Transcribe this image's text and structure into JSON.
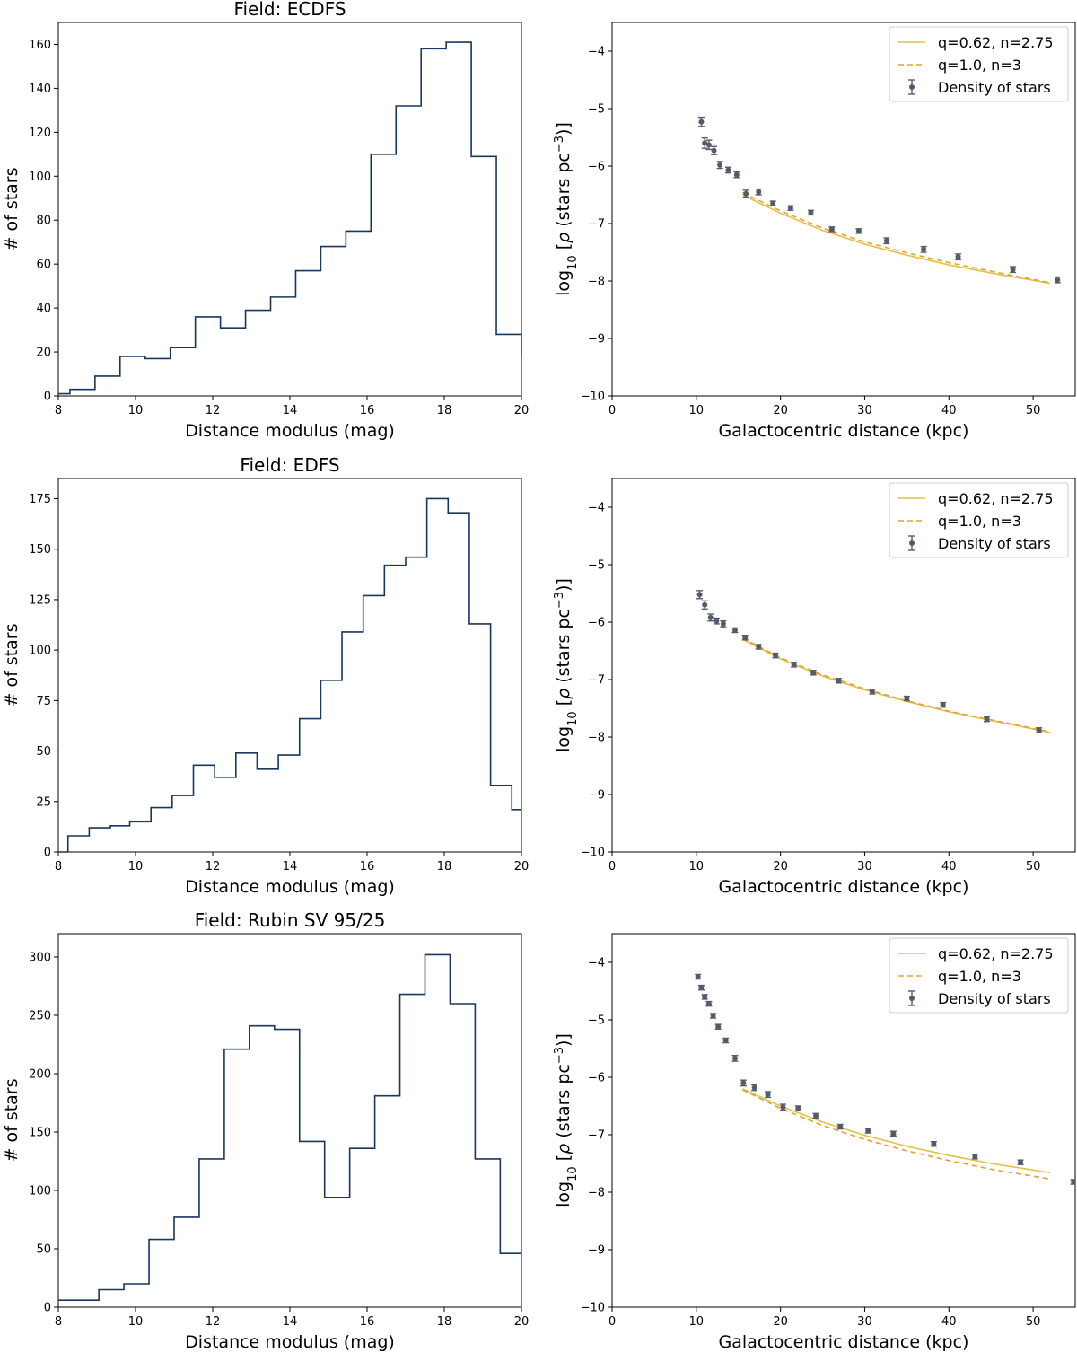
{
  "figure": {
    "legend": {
      "solid_label": "q=0.62, n=2.75",
      "dashed_label": "q=1.0, n=3",
      "points_label": "Density of stars"
    },
    "colors": {
      "histogram": "#17375e",
      "model_solid": "#e6c040",
      "model_dashed": "#e0a23a",
      "points": "#555a6b"
    }
  },
  "chart_data": [
    {
      "type": "bar",
      "style": "step-histogram",
      "title": "Field: ECDFS",
      "xlabel": "Distance modulus (mag)",
      "ylabel": "# of stars",
      "xlim": [
        8,
        20
      ],
      "ylim": [
        0,
        170
      ],
      "xticks": [
        8,
        10,
        12,
        14,
        16,
        18,
        20
      ],
      "yticks": [
        0,
        20,
        40,
        60,
        80,
        100,
        120,
        140,
        160
      ],
      "bin_edges": [
        8,
        8.3,
        8.95,
        9.6,
        10.25,
        10.9,
        11.55,
        12.2,
        12.85,
        13.5,
        14.15,
        14.8,
        15.45,
        16.1,
        16.75,
        17.4,
        18.05,
        18.7,
        19.35,
        20
      ],
      "values": [
        1,
        3,
        9,
        18,
        17,
        22,
        36,
        31,
        39,
        45,
        57,
        68,
        75,
        110,
        132,
        158,
        161,
        109,
        28,
        19
      ]
    },
    {
      "type": "scatter",
      "style": "errorbar-with-models",
      "xlabel": "Galactocentric distance (kpc)",
      "ylabel": "log10[ρ (stars pc^-3)]",
      "xlim": [
        0,
        55
      ],
      "ylim": [
        -10,
        -3.5
      ],
      "xticks": [
        0,
        10,
        20,
        30,
        40,
        50
      ],
      "yticks": [
        -10,
        -9,
        -8,
        -7,
        -6,
        -5,
        -4
      ],
      "points": {
        "x": [
          10.6,
          11.0,
          11.5,
          12.1,
          12.8,
          13.8,
          14.8,
          15.9,
          17.4,
          19.1,
          21.2,
          23.6,
          26.1,
          29.3,
          32.6,
          37.0,
          41.1,
          47.6,
          52.9
        ],
        "y": [
          -5.23,
          -5.6,
          -5.63,
          -5.73,
          -5.98,
          -6.07,
          -6.15,
          -6.48,
          -6.45,
          -6.65,
          -6.73,
          -6.81,
          -7.1,
          -7.13,
          -7.3,
          -7.45,
          -7.58,
          -7.8,
          -7.98
        ],
        "err": [
          0.08,
          0.09,
          0.08,
          0.07,
          0.06,
          0.05,
          0.05,
          0.06,
          0.05,
          0.04,
          0.04,
          0.04,
          0.04,
          0.04,
          0.05,
          0.05,
          0.05,
          0.05,
          0.05
        ]
      },
      "series": [
        {
          "name": "q=0.62, n=2.75",
          "style": "solid",
          "x": [
            15.5,
            20,
            25,
            30,
            35,
            40,
            45,
            52
          ],
          "values": [
            -6.5,
            -6.82,
            -7.12,
            -7.36,
            -7.55,
            -7.72,
            -7.86,
            -8.04
          ]
        },
        {
          "name": "q=1.0, n=3",
          "style": "dashed",
          "x": [
            15.5,
            20,
            25,
            30,
            35,
            40,
            45,
            52
          ],
          "values": [
            -6.46,
            -6.78,
            -7.08,
            -7.32,
            -7.51,
            -7.68,
            -7.83,
            -8.03
          ]
        }
      ]
    },
    {
      "type": "bar",
      "style": "step-histogram",
      "title": "Field: EDFS",
      "xlabel": "Distance modulus (mag)",
      "ylabel": "# of stars",
      "xlim": [
        8,
        20
      ],
      "ylim": [
        0,
        185
      ],
      "xticks": [
        8,
        10,
        12,
        14,
        16,
        18,
        20
      ],
      "yticks": [
        0,
        25,
        50,
        75,
        100,
        125,
        150,
        175
      ],
      "bin_edges": [
        8,
        8.25,
        8.8,
        9.35,
        9.85,
        10.4,
        10.95,
        11.5,
        12.05,
        12.6,
        13.15,
        13.7,
        14.25,
        14.8,
        15.35,
        15.9,
        16.45,
        17.0,
        17.55,
        18.1,
        18.65,
        19.2,
        19.75,
        20
      ],
      "values": [
        0,
        8,
        12,
        13,
        15,
        22,
        28,
        43,
        37,
        49,
        41,
        48,
        66,
        85,
        109,
        127,
        142,
        146,
        175,
        168,
        113,
        33,
        21
      ]
    },
    {
      "type": "scatter",
      "style": "errorbar-with-models",
      "xlabel": "Galactocentric distance (kpc)",
      "ylabel": "log10[ρ (stars pc^-3)]",
      "xlim": [
        0,
        55
      ],
      "ylim": [
        -10,
        -3.5
      ],
      "xticks": [
        0,
        10,
        20,
        30,
        40,
        50
      ],
      "yticks": [
        -10,
        -9,
        -8,
        -7,
        -6,
        -5,
        -4
      ],
      "points": {
        "x": [
          10.4,
          11.0,
          11.7,
          12.4,
          13.2,
          14.6,
          15.8,
          17.4,
          19.4,
          21.6,
          23.9,
          26.9,
          30.9,
          35.0,
          39.3,
          44.5,
          50.7
        ],
        "y": [
          -5.52,
          -5.7,
          -5.92,
          -5.98,
          -6.03,
          -6.14,
          -6.27,
          -6.43,
          -6.58,
          -6.74,
          -6.88,
          -7.02,
          -7.21,
          -7.33,
          -7.44,
          -7.69,
          -7.88
        ],
        "err": [
          0.07,
          0.07,
          0.06,
          0.05,
          0.05,
          0.04,
          0.04,
          0.04,
          0.04,
          0.04,
          0.04,
          0.04,
          0.04,
          0.04,
          0.04,
          0.04,
          0.04
        ]
      },
      "series": [
        {
          "name": "q=0.62, n=2.75",
          "style": "solid",
          "x": [
            15.5,
            20,
            25,
            30,
            35,
            40,
            45,
            52
          ],
          "values": [
            -6.3,
            -6.64,
            -6.94,
            -7.18,
            -7.38,
            -7.56,
            -7.71,
            -7.92
          ]
        },
        {
          "name": "q=1.0, n=3",
          "style": "dashed",
          "x": [
            15.5,
            20,
            25,
            30,
            35,
            40,
            45,
            52
          ],
          "values": [
            -6.28,
            -6.62,
            -6.92,
            -7.16,
            -7.37,
            -7.55,
            -7.7,
            -7.91
          ]
        }
      ]
    },
    {
      "type": "bar",
      "style": "step-histogram",
      "title": "Field: Rubin SV 95/25",
      "xlabel": "Distance modulus (mag)",
      "ylabel": "# of stars",
      "xlim": [
        8,
        20
      ],
      "ylim": [
        0,
        320
      ],
      "xticks": [
        8,
        10,
        12,
        14,
        16,
        18,
        20
      ],
      "yticks": [
        0,
        50,
        100,
        150,
        200,
        250,
        300
      ],
      "bin_edges": [
        8,
        9.05,
        9.7,
        10.35,
        11.0,
        11.65,
        12.3,
        12.95,
        13.6,
        14.25,
        14.9,
        15.55,
        16.2,
        16.85,
        17.5,
        18.15,
        18.8,
        19.45,
        20
      ],
      "values": [
        6,
        15,
        20,
        58,
        77,
        127,
        221,
        241,
        238,
        142,
        94,
        136,
        181,
        268,
        302,
        260,
        127,
        46
      ]
    },
    {
      "type": "scatter",
      "style": "errorbar-with-models",
      "xlabel": "Galactocentric distance (kpc)",
      "ylabel": "log10[ρ (stars pc^-3)]",
      "xlim": [
        0,
        55
      ],
      "ylim": [
        -10,
        -3.5
      ],
      "xticks": [
        0,
        10,
        20,
        30,
        40,
        50
      ],
      "yticks": [
        -10,
        -9,
        -8,
        -7,
        -6,
        -5,
        -4
      ],
      "points": {
        "x": [
          10.2,
          10.6,
          11.0,
          11.5,
          12.0,
          12.6,
          13.5,
          14.6,
          15.6,
          16.9,
          18.5,
          20.3,
          22.1,
          24.2,
          27.1,
          30.4,
          33.4,
          38.2,
          43.1,
          48.5,
          54.8
        ],
        "y": [
          -4.25,
          -4.44,
          -4.6,
          -4.72,
          -4.93,
          -5.12,
          -5.36,
          -5.67,
          -6.1,
          -6.18,
          -6.3,
          -6.52,
          -6.54,
          -6.67,
          -6.86,
          -6.93,
          -6.98,
          -7.16,
          -7.38,
          -7.48,
          -7.82
        ],
        "err": [
          0.04,
          0.04,
          0.04,
          0.04,
          0.04,
          0.04,
          0.04,
          0.05,
          0.05,
          0.05,
          0.05,
          0.05,
          0.04,
          0.04,
          0.04,
          0.04,
          0.04,
          0.04,
          0.04,
          0.04,
          0.04
        ]
      },
      "series": [
        {
          "name": "q=0.62, n=2.75",
          "style": "solid",
          "x": [
            15.5,
            20,
            25,
            30,
            35,
            40,
            45,
            52
          ],
          "values": [
            -6.2,
            -6.5,
            -6.78,
            -7.01,
            -7.2,
            -7.36,
            -7.5,
            -7.66
          ]
        },
        {
          "name": "q=1.0, n=3",
          "style": "dashed",
          "x": [
            15.5,
            20,
            25,
            30,
            35,
            40,
            45,
            52
          ],
          "values": [
            -6.22,
            -6.54,
            -6.84,
            -7.08,
            -7.28,
            -7.45,
            -7.6,
            -7.77
          ]
        }
      ]
    }
  ]
}
